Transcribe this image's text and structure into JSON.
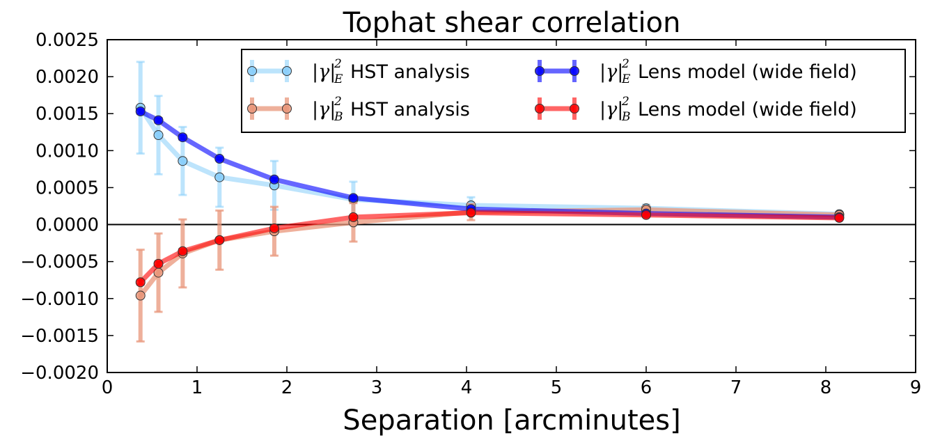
{
  "chart_data": {
    "type": "line",
    "title": "Tophat shear correlation",
    "xlabel": "Separation [arcminutes]",
    "ylabel": "",
    "xlim": [
      0,
      9
    ],
    "ylim": [
      -0.002,
      0.0025
    ],
    "xticks": [
      0,
      1,
      2,
      3,
      4,
      5,
      6,
      7,
      8,
      9
    ],
    "xtick_labels": [
      "0",
      "1",
      "2",
      "3",
      "4",
      "5",
      "6",
      "7",
      "8",
      "9"
    ],
    "yticks": [
      -0.002,
      -0.0015,
      -0.001,
      -0.0005,
      0.0,
      0.0005,
      0.001,
      0.0015,
      0.002,
      0.0025
    ],
    "ytick_labels": [
      "−0.0020",
      "−0.0015",
      "−0.0010",
      "−0.0005",
      "0.0000",
      "0.0005",
      "0.0010",
      "0.0015",
      "0.0020",
      "0.0025"
    ],
    "zero_line": true,
    "grid": false,
    "legend_position": "top-right",
    "legend_columns": 2,
    "x": [
      0.37,
      0.57,
      0.84,
      1.25,
      1.86,
      2.74,
      4.05,
      6.0,
      8.15
    ],
    "series": [
      {
        "name": "HST analysis",
        "legend_math": "|γ|",
        "legend_sup": "2",
        "legend_sub": "E",
        "color": "#87cefa",
        "face_color": "#87cefa",
        "line_opacity": 0.55,
        "values": [
          0.00158,
          0.00121,
          0.00086,
          0.00064,
          0.00053,
          0.00034,
          0.00026,
          0.00022,
          0.00014
        ],
        "errors": [
          0.00062,
          0.00053,
          0.00046,
          0.0004,
          0.00033,
          0.00024,
          0.00011,
          5e-05,
          3e-05
        ]
      },
      {
        "name": "HST analysis",
        "legend_math": "|γ|",
        "legend_sup": "2",
        "legend_sub": "B",
        "color": "#e9967a",
        "face_color": "#e9967a",
        "line_opacity": 0.75,
        "values": [
          -0.00096,
          -0.00065,
          -0.00039,
          -0.00021,
          -9e-05,
          3e-05,
          0.00017,
          0.0002,
          0.00013
        ],
        "errors": [
          0.00062,
          0.00053,
          0.00046,
          0.0004,
          0.00033,
          0.00026,
          0.00011,
          5e-05,
          3e-05
        ]
      },
      {
        "name": "Lens model (wide field)",
        "legend_math": "|γ|",
        "legend_sup": "2",
        "legend_sub": "E",
        "color": "#0000ff",
        "face_color": "#0000ff",
        "line_opacity": 0.6,
        "values": [
          0.00153,
          0.00141,
          0.00118,
          0.00089,
          0.00061,
          0.00036,
          0.00021,
          0.00015,
          0.0001
        ],
        "errors": [
          3e-05,
          3e-05,
          3e-05,
          2e-05,
          2e-05,
          2e-05,
          1e-05,
          1e-05,
          1e-05
        ]
      },
      {
        "name": "Lens model (wide field)",
        "legend_math": "|γ|",
        "legend_sup": "2",
        "legend_sub": "B",
        "color": "#ff0000",
        "face_color": "#ff0000",
        "line_opacity": 0.6,
        "values": [
          -0.00078,
          -0.00053,
          -0.00036,
          -0.00021,
          -5e-05,
          0.0001,
          0.00016,
          0.00013,
          9e-05
        ],
        "errors": [
          3e-05,
          3e-05,
          3e-05,
          2e-05,
          2e-05,
          2e-05,
          1e-05,
          1e-05,
          1e-05
        ]
      }
    ]
  }
}
